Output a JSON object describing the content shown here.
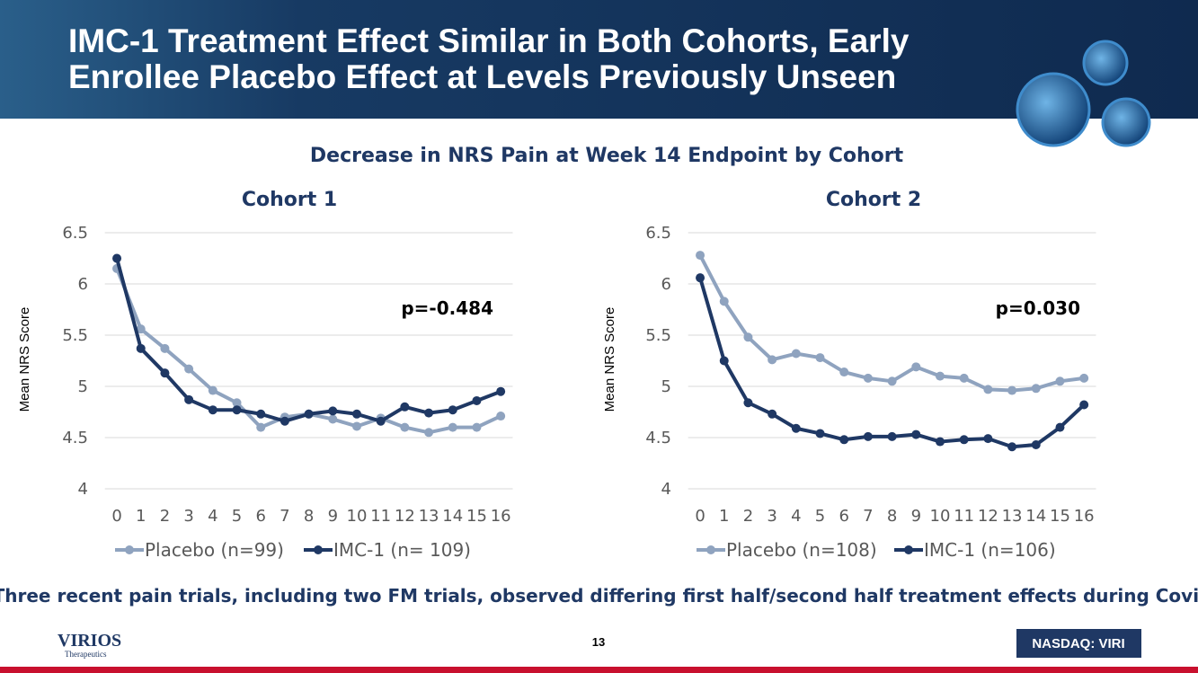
{
  "header": {
    "title_lines": [
      "IMC-1 Treatment Effect Similar in Both Cohorts, Early",
      "Enrollee Placebo Effect at Levels Previously Unseen"
    ]
  },
  "subtitle": "Decrease in NRS Pain at Week 14 Endpoint by Cohort",
  "chart_data": [
    {
      "type": "line",
      "title": "Cohort 1",
      "y_label": "Mean NRS Score",
      "annotation": "p=-0.484",
      "categories": [
        "0",
        "1",
        "2",
        "3",
        "4",
        "5",
        "6",
        "7",
        "8",
        "9",
        "10",
        "11",
        "12",
        "13",
        "14",
        "15",
        "16"
      ],
      "ylim": [
        4,
        6.5
      ],
      "yticks": [
        4,
        4.5,
        5,
        5.5,
        6,
        6.5
      ],
      "grid": true,
      "series": [
        {
          "name": "Placebo (n=99)",
          "color": "#8fa3bf",
          "values": [
            6.15,
            5.56,
            5.37,
            5.17,
            4.96,
            4.84,
            4.6,
            4.7,
            4.73,
            4.68,
            4.61,
            4.69,
            4.6,
            4.55,
            4.6,
            4.6,
            4.71
          ]
        },
        {
          "name": "IMC-1 (n= 109)",
          "color": "#1f3864",
          "values": [
            6.25,
            5.37,
            5.13,
            4.87,
            4.77,
            4.77,
            4.73,
            4.66,
            4.73,
            4.76,
            4.73,
            4.66,
            4.8,
            4.74,
            4.77,
            4.86,
            4.95
          ]
        }
      ]
    },
    {
      "type": "line",
      "title": "Cohort 2",
      "y_label": "Mean NRS Score",
      "annotation": "p=0.030",
      "categories": [
        "0",
        "1",
        "2",
        "3",
        "4",
        "5",
        "6",
        "7",
        "8",
        "9",
        "10",
        "11",
        "12",
        "13",
        "14",
        "15",
        "16"
      ],
      "ylim": [
        4,
        6.5
      ],
      "yticks": [
        4,
        4.5,
        5,
        5.5,
        6,
        6.5
      ],
      "grid": true,
      "series": [
        {
          "name": "Placebo (n=108)",
          "color": "#8fa3bf",
          "values": [
            6.28,
            5.83,
            5.48,
            5.26,
            5.32,
            5.28,
            5.14,
            5.08,
            5.05,
            5.19,
            5.1,
            5.08,
            4.97,
            4.96,
            4.98,
            5.05,
            5.08
          ]
        },
        {
          "name": "IMC-1 (n=106)",
          "color": "#1f3864",
          "values": [
            6.06,
            5.25,
            4.84,
            4.73,
            4.59,
            4.54,
            4.48,
            4.51,
            4.51,
            4.53,
            4.46,
            4.48,
            4.49,
            4.41,
            4.43,
            4.6,
            4.82
          ]
        }
      ]
    }
  ],
  "footnote": "Three recent pain trials, including two FM trials, observed differing first half/second half treatment effects during Covid",
  "footer": {
    "logo": "VIRIOS",
    "logo_tagline": "Therapeutics",
    "page": "13",
    "ticker": "NASDAQ: VIRI"
  }
}
